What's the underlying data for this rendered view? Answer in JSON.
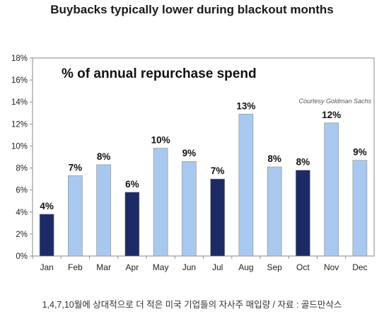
{
  "chart_data": {
    "type": "bar",
    "title": "Buybacks typically lower during blackout months",
    "subtitle": "% of annual repurchase spend",
    "source_note": "Courtesy Goldman Sachs",
    "categories": [
      "Jan",
      "Feb",
      "Mar",
      "Apr",
      "May",
      "Jun",
      "Jul",
      "Aug",
      "Sep",
      "Oct",
      "Nov",
      "Dec"
    ],
    "values": [
      3.8,
      7.3,
      8.3,
      5.8,
      9.8,
      8.6,
      7.0,
      12.9,
      8.1,
      7.8,
      12.1,
      8.7
    ],
    "data_labels": [
      "4%",
      "7%",
      "8%",
      "6%",
      "10%",
      "9%",
      "7%",
      "13%",
      "8%",
      "8%",
      "12%",
      "9%"
    ],
    "highlighted": [
      true,
      false,
      false,
      true,
      false,
      false,
      true,
      false,
      false,
      true,
      false,
      false
    ],
    "colors": {
      "normal": "#a9c8ef",
      "highlight": "#1c2a66",
      "border": "#8a8a8a"
    },
    "ylim": [
      0,
      18
    ],
    "yticks": [
      "0%",
      "2%",
      "4%",
      "6%",
      "8%",
      "10%",
      "12%",
      "14%",
      "16%",
      "18%"
    ],
    "grid": false,
    "legend": "none",
    "xlabel": "",
    "ylabel": ""
  },
  "caption": "1,4,7,10월에 상대적으로 더 적은 미국 기업들의 자사주 매입량 / 자료 : 골드만삭스"
}
